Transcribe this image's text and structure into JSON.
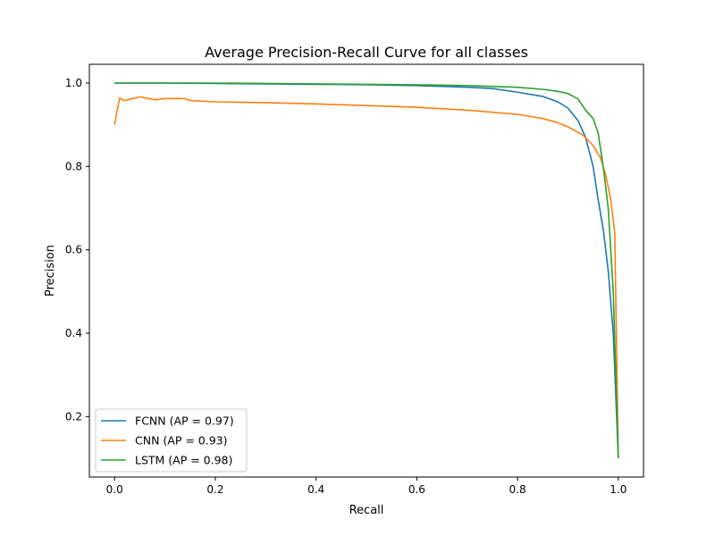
{
  "chart_data": {
    "type": "line",
    "title": "Average Precision-Recall Curve for all classes",
    "xlabel": "Recall",
    "ylabel": "Precision",
    "xlim": [
      -0.05,
      1.05
    ],
    "ylim": [
      0.055,
      1.045
    ],
    "xticks": [
      "0.0",
      "0.2",
      "0.4",
      "0.6",
      "0.8",
      "1.0"
    ],
    "yticks": [
      "0.2",
      "0.4",
      "0.6",
      "0.8",
      "1.0"
    ],
    "grid": false,
    "legend_position": "lower-left",
    "series": [
      {
        "name": "FCNN (AP = 0.97)",
        "color": "#1f77b4",
        "points": [
          [
            0.0,
            1.0
          ],
          [
            0.1,
            1.0
          ],
          [
            0.2,
            0.999
          ],
          [
            0.3,
            0.998
          ],
          [
            0.4,
            0.997
          ],
          [
            0.5,
            0.996
          ],
          [
            0.6,
            0.994
          ],
          [
            0.7,
            0.99
          ],
          [
            0.75,
            0.987
          ],
          [
            0.8,
            0.978
          ],
          [
            0.85,
            0.968
          ],
          [
            0.88,
            0.955
          ],
          [
            0.9,
            0.94
          ],
          [
            0.92,
            0.91
          ],
          [
            0.935,
            0.87
          ],
          [
            0.95,
            0.8
          ],
          [
            0.96,
            0.72
          ],
          [
            0.97,
            0.65
          ],
          [
            0.98,
            0.55
          ],
          [
            0.99,
            0.4
          ],
          [
            1.0,
            0.1
          ]
        ]
      },
      {
        "name": "CNN (AP = 0.93)",
        "color": "#ff7f0e",
        "points": [
          [
            0.0,
            0.9
          ],
          [
            0.01,
            0.964
          ],
          [
            0.02,
            0.958
          ],
          [
            0.03,
            0.961
          ],
          [
            0.05,
            0.967
          ],
          [
            0.08,
            0.96
          ],
          [
            0.1,
            0.963
          ],
          [
            0.14,
            0.963
          ],
          [
            0.15,
            0.958
          ],
          [
            0.2,
            0.955
          ],
          [
            0.3,
            0.953
          ],
          [
            0.4,
            0.95
          ],
          [
            0.5,
            0.946
          ],
          [
            0.6,
            0.942
          ],
          [
            0.7,
            0.935
          ],
          [
            0.8,
            0.925
          ],
          [
            0.85,
            0.915
          ],
          [
            0.88,
            0.905
          ],
          [
            0.9,
            0.895
          ],
          [
            0.93,
            0.875
          ],
          [
            0.95,
            0.85
          ],
          [
            0.965,
            0.82
          ],
          [
            0.975,
            0.78
          ],
          [
            0.985,
            0.72
          ],
          [
            0.993,
            0.64
          ],
          [
            1.0,
            0.1
          ]
        ]
      },
      {
        "name": "LSTM (AP = 0.98)",
        "color": "#2ca02c",
        "points": [
          [
            0.0,
            1.0
          ],
          [
            0.2,
            1.0
          ],
          [
            0.4,
            0.998
          ],
          [
            0.6,
            0.996
          ],
          [
            0.7,
            0.994
          ],
          [
            0.8,
            0.99
          ],
          [
            0.85,
            0.985
          ],
          [
            0.88,
            0.98
          ],
          [
            0.9,
            0.975
          ],
          [
            0.92,
            0.962
          ],
          [
            0.935,
            0.935
          ],
          [
            0.95,
            0.915
          ],
          [
            0.96,
            0.88
          ],
          [
            0.97,
            0.8
          ],
          [
            0.98,
            0.7
          ],
          [
            0.99,
            0.5
          ],
          [
            1.0,
            0.1
          ]
        ]
      }
    ]
  }
}
